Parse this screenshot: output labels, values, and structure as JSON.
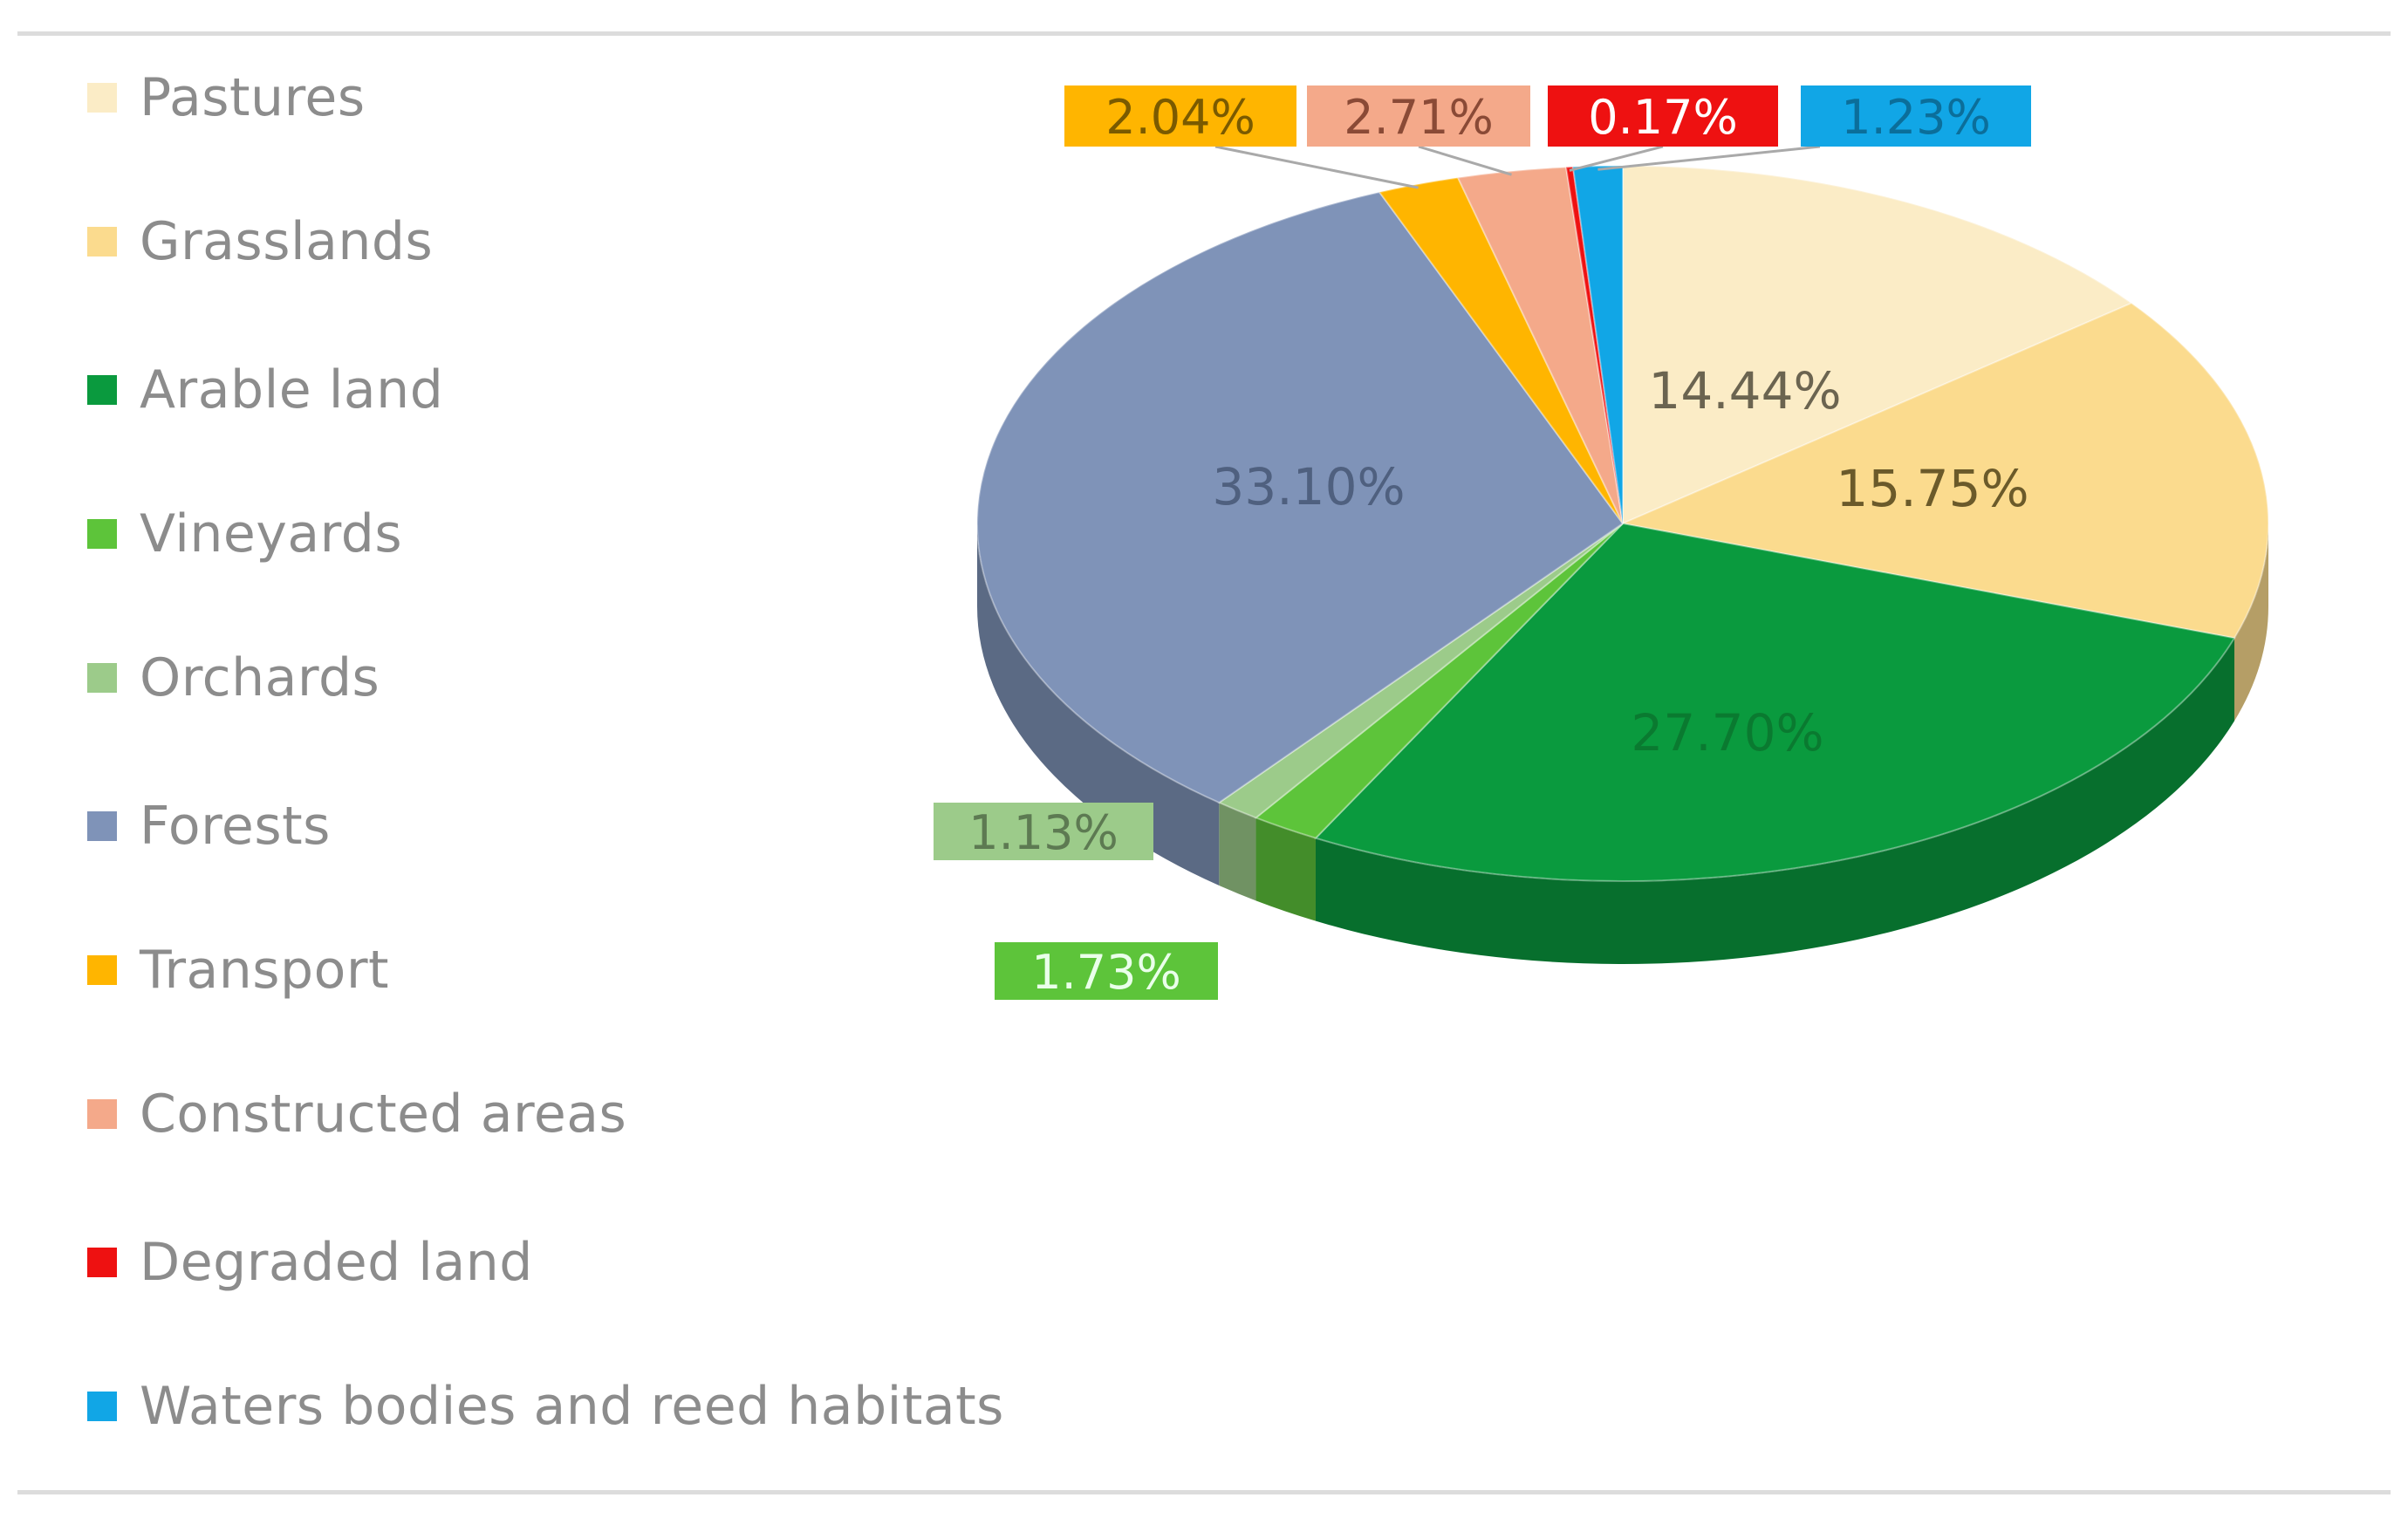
{
  "chart_data": {
    "type": "pie",
    "title": "",
    "categories": [
      "Pastures",
      "Grasslands",
      "Arable land",
      "Vineyards",
      "Orchards",
      "Forests",
      "Transport",
      "Constructed areas",
      "Degraded land",
      "Waters bodies and reed habitats"
    ],
    "values": [
      14.44,
      15.75,
      27.7,
      1.73,
      1.13,
      33.1,
      2.04,
      2.71,
      0.17,
      1.23
    ],
    "labels": [
      "14.44%",
      "15.75%",
      "27.70%",
      "1.73%",
      "1.13%",
      "33.10%",
      "2.04%",
      "2.71%",
      "0.17%",
      "1.23%"
    ],
    "colors": [
      "#fbecc6",
      "#fbdb8e",
      "#0a9a3e",
      "#5dc43a",
      "#9ccb8a",
      "#7f93b8",
      "#ffb500",
      "#f4a98a",
      "#ee1111",
      "#11a6e6"
    ],
    "legend_position": "left",
    "style": "3d-pie"
  }
}
